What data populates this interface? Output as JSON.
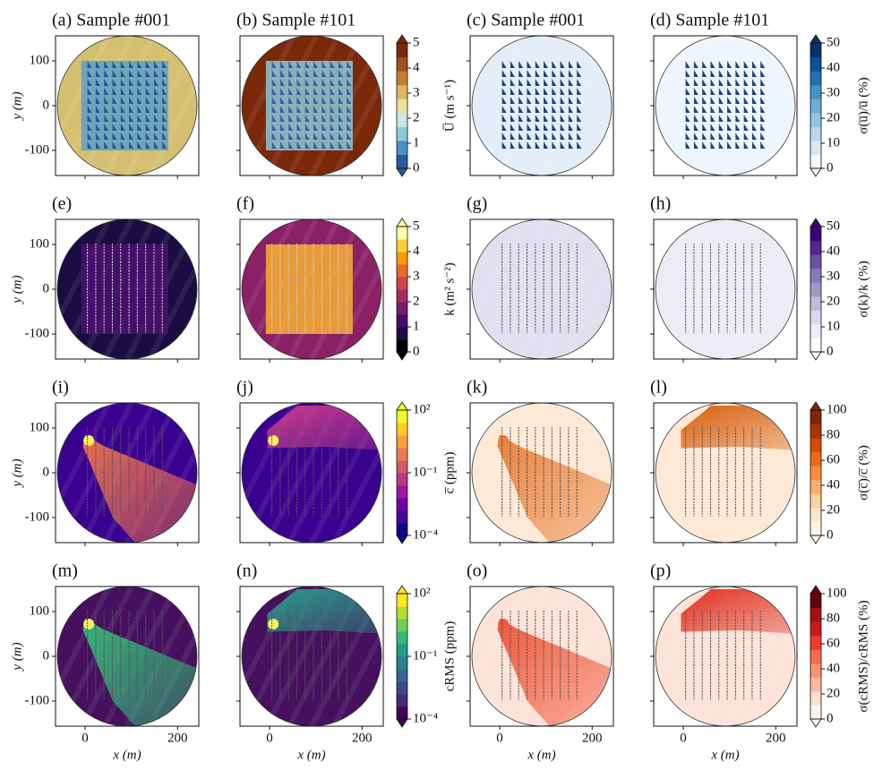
{
  "figure": {
    "xlabel": "x (m)",
    "ylabel": "y (m)",
    "xlim": [
      -64,
      246
    ],
    "ylim": [
      -156,
      156
    ],
    "xticks": [
      0,
      200
    ],
    "yticks": [
      -100,
      0,
      100
    ],
    "panels": [
      {
        "title": "(a) Sample #001",
        "fill": "#d4c070",
        "accent": "#5aa0c8"
      },
      {
        "title": "(b) Sample #101",
        "fill": "#7a2808",
        "accent": "#8cc8d8"
      },
      {
        "title": "(c) Sample #001",
        "fill": "#e3eef9",
        "accent": "#08306b"
      },
      {
        "title": "(d) Sample #101",
        "fill": "#eef5fc",
        "accent": "#08306b"
      },
      {
        "title": "(e)",
        "fill": "#1b0c41",
        "accent": "#4a1270"
      },
      {
        "title": "(f)",
        "fill": "#8a2066",
        "accent": "#f7b030"
      },
      {
        "title": "(g)",
        "fill": "#e2e0ef",
        "accent": "#bcbddc"
      },
      {
        "title": "(h)",
        "fill": "#edebf4",
        "accent": "#dadaeb"
      },
      {
        "title": "(i)",
        "fill": "#3a0090",
        "accent": "#e87050"
      },
      {
        "title": "(j)",
        "fill": "#3a0090",
        "accent": "#c83c8c"
      },
      {
        "title": "(k)",
        "fill": "#fde9d6",
        "accent": "#e8823c"
      },
      {
        "title": "(l)",
        "fill": "#fde9d6",
        "accent": "#d86010"
      },
      {
        "title": "(m)",
        "fill": "#46105e",
        "accent": "#35b779"
      },
      {
        "title": "(n)",
        "fill": "#46105e",
        "accent": "#2a9a8a"
      },
      {
        "title": "(o)",
        "fill": "#fde3d8",
        "accent": "#ef5a3c"
      },
      {
        "title": "(p)",
        "fill": "#fde3d8",
        "accent": "#e03020"
      }
    ],
    "colorbars": [
      {
        "label": "U̅ (m s⁻¹)",
        "lim": [
          0,
          5
        ],
        "ticks": [
          0,
          1,
          2,
          3,
          4,
          5
        ],
        "colors": [
          "#2c5aa0",
          "#4a90c8",
          "#8cc8d8",
          "#c8e8e0",
          "#e8e0a0",
          "#d8b860",
          "#c08030",
          "#a05018",
          "#7a2808"
        ]
      },
      {
        "label": "σ(u̅)/u̅ (%)",
        "lim": [
          0,
          50
        ],
        "ticks": [
          0,
          10,
          20,
          30,
          40,
          50
        ],
        "colors": [
          "#f4f9ff",
          "#dbe9f6",
          "#bdd7ee",
          "#94c4df",
          "#6baed6",
          "#4292c6",
          "#2171b5",
          "#08519c",
          "#08306b"
        ]
      },
      {
        "label": "k (m² s⁻²)",
        "lim": [
          0,
          5
        ],
        "ticks": [
          0,
          1,
          2,
          3,
          4,
          5
        ],
        "colors": [
          "#000004",
          "#1b0c41",
          "#4a0c6b",
          "#781c6d",
          "#a52c60",
          "#cf4446",
          "#ed6925",
          "#fb9b06",
          "#f7d13d",
          "#fcffa4"
        ]
      },
      {
        "label": "σ(k)/k (%)",
        "lim": [
          0,
          50
        ],
        "ticks": [
          0,
          10,
          20,
          30,
          40,
          50
        ],
        "colors": [
          "#fcfbfd",
          "#efedf5",
          "#dadaeb",
          "#bcbddc",
          "#9e9ac8",
          "#807dba",
          "#6a51a3",
          "#54278f",
          "#3f007d"
        ]
      },
      {
        "label": "c̅ (ppm)",
        "lim": [
          0.0001,
          100
        ],
        "log": true,
        "ticks": [
          {
            "value": 0.0001,
            "label": "10⁻⁴"
          },
          {
            "value": 0.1,
            "label": "10⁻¹"
          },
          {
            "value": 100,
            "label": "10²"
          }
        ],
        "colors": [
          "#0d0887",
          "#46039f",
          "#7201a8",
          "#9c179e",
          "#bd3786",
          "#d8576b",
          "#ed7953",
          "#fb9f3a",
          "#fdca26",
          "#f0f921"
        ]
      },
      {
        "label": "σ(c̅)/c̅ (%)",
        "lim": [
          0,
          100
        ],
        "ticks": [
          0,
          20,
          40,
          60,
          80,
          100
        ],
        "colors": [
          "#fff5eb",
          "#fee6ce",
          "#fdd0a2",
          "#fdae6b",
          "#fd8d3c",
          "#f16913",
          "#d94801",
          "#a63603",
          "#7f2704"
        ]
      },
      {
        "label": "cRMS (ppm)",
        "lim": [
          0.0001,
          100
        ],
        "log": true,
        "ticks": [
          {
            "value": 0.0001,
            "label": "10⁻⁴"
          },
          {
            "value": 0.1,
            "label": "10⁻¹"
          },
          {
            "value": 100,
            "label": "10²"
          }
        ],
        "colors": [
          "#440154",
          "#482878",
          "#3e4989",
          "#31688e",
          "#26828e",
          "#1f9e89",
          "#35b779",
          "#6ece58",
          "#b5de2b",
          "#fde725"
        ]
      },
      {
        "label": "σ(cRMS)/cRMS (%)",
        "lim": [
          0,
          100
        ],
        "ticks": [
          0,
          20,
          40,
          60,
          80,
          100
        ],
        "colors": [
          "#fff5f0",
          "#fee0d2",
          "#fcbba1",
          "#fc9272",
          "#fb6a4a",
          "#ef3b2c",
          "#cb181d",
          "#a50f15",
          "#67000d"
        ]
      }
    ]
  }
}
